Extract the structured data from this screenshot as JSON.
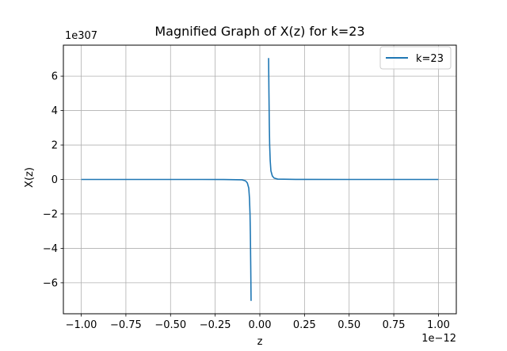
{
  "chart_data": {
    "type": "line",
    "title": "Magnified Graph of X(z) for k=23",
    "xlabel": "z",
    "ylabel": "X(z)",
    "x_offset_label": "1e−12",
    "y_offset_label": "1e307",
    "xlim": [
      -1.1,
      1.1
    ],
    "ylim": [
      -7.8,
      7.8
    ],
    "x_ticks": [
      -1.0,
      -0.75,
      -0.5,
      -0.25,
      0.0,
      0.25,
      0.5,
      0.75,
      1.0
    ],
    "x_tick_labels": [
      "−1.00",
      "−0.75",
      "−0.50",
      "−0.25",
      "0.00",
      "0.25",
      "0.50",
      "0.75",
      "1.00"
    ],
    "y_ticks": [
      -6,
      -4,
      -2,
      0,
      2,
      4,
      6
    ],
    "y_tick_labels": [
      "−6",
      "−4",
      "−2",
      "0",
      "2",
      "4",
      "6"
    ],
    "grid": true,
    "legend_position": "top-right",
    "series": [
      {
        "name": "k=23",
        "color": "#1f77b4",
        "x": [
          -1.0,
          -0.5,
          -0.2,
          -0.1,
          -0.08,
          -0.07,
          -0.062,
          -0.058,
          -0.055,
          -0.053,
          -0.051,
          -0.049,
          null,
          0.049,
          0.051,
          0.053,
          0.055,
          0.058,
          0.062,
          0.07,
          0.08,
          0.1,
          0.2,
          0.5,
          1.0
        ],
        "y": [
          0,
          0,
          -0.001,
          -0.02,
          -0.08,
          -0.2,
          -0.5,
          -1.1,
          -2.0,
          -3.2,
          -5.0,
          -7.05,
          null,
          7.05,
          5.0,
          3.2,
          2.0,
          1.1,
          0.5,
          0.2,
          0.08,
          0.02,
          0.001,
          0,
          0
        ]
      }
    ]
  }
}
